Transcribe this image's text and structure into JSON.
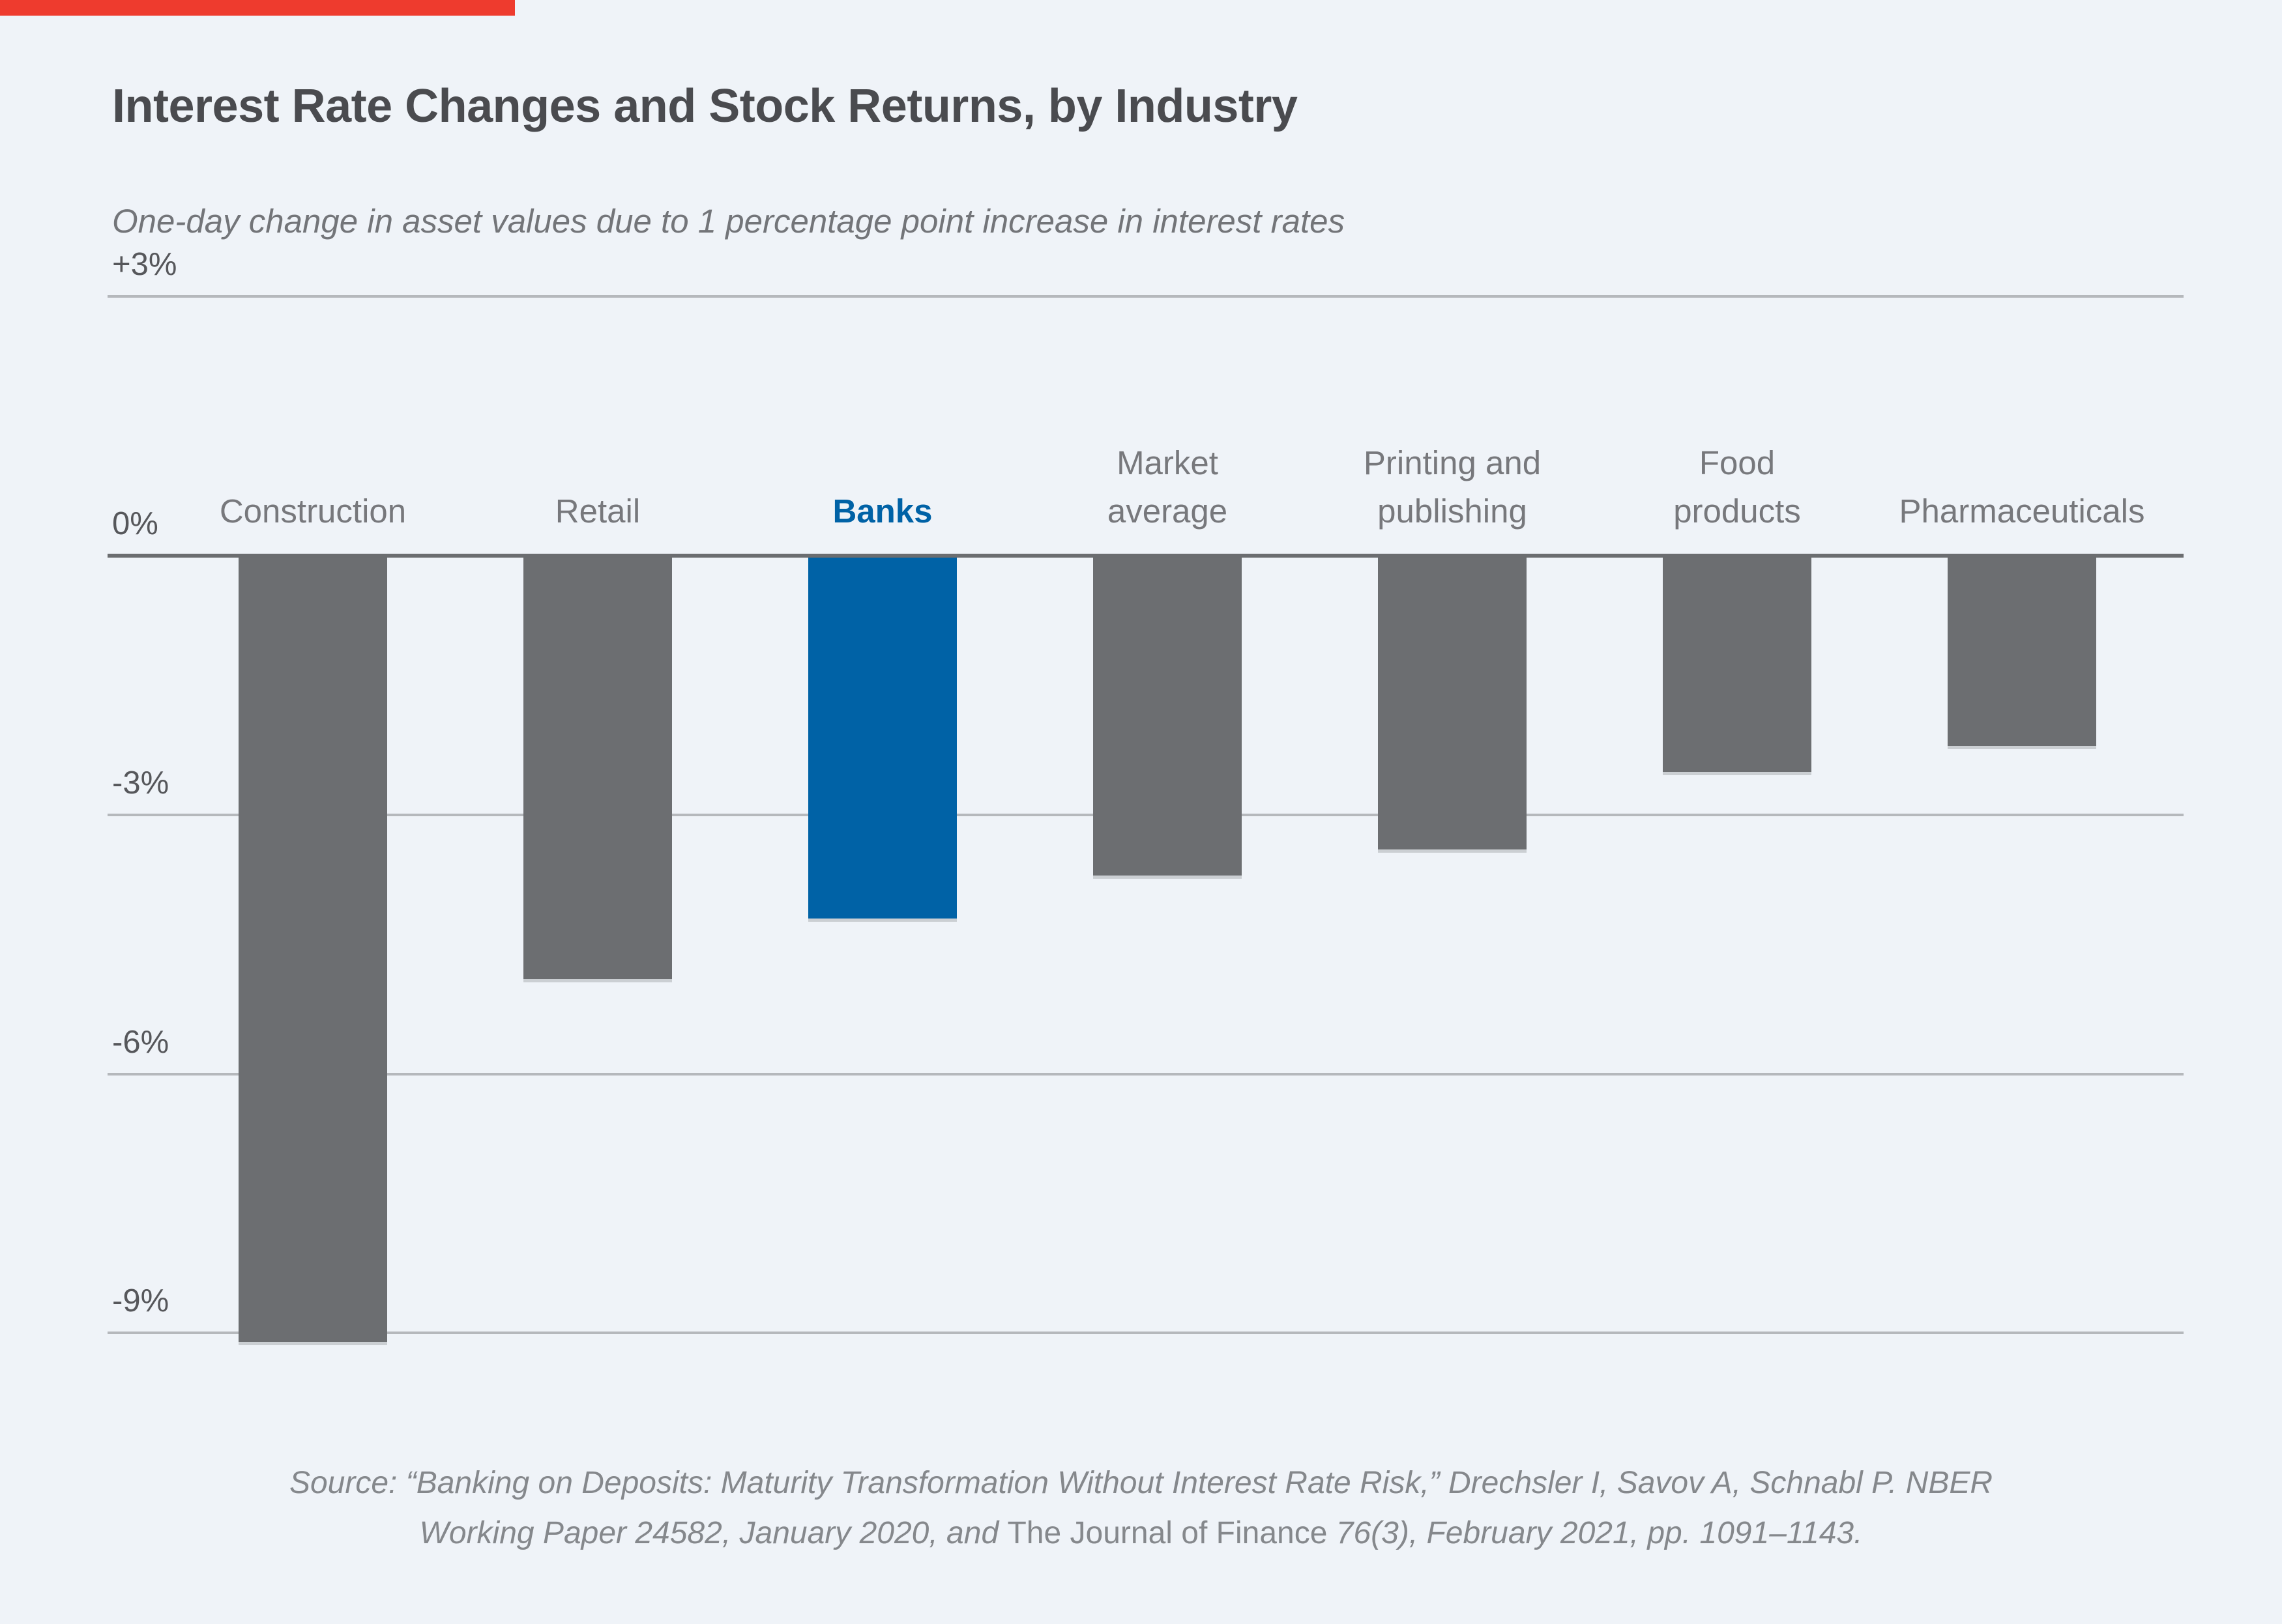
{
  "accent_bar": {
    "color": "#ee3b2e"
  },
  "chart_data": {
    "type": "bar",
    "title": "Interest Rate Changes and Stock Returns, by Industry",
    "subtitle": "One-day change in asset values due to 1 percentage point increase in interest rates",
    "categories": [
      "Construction",
      "Retail",
      "Banks",
      "Market average",
      "Printing and publishing",
      "Food products",
      "Pharmaceuticals"
    ],
    "category_label_lines": [
      [
        "Construction"
      ],
      [
        "Retail"
      ],
      [
        "Banks"
      ],
      [
        "Market",
        "average"
      ],
      [
        "Printing and",
        "publishing"
      ],
      [
        "Food",
        "products"
      ],
      [
        "Pharmaceuticals"
      ]
    ],
    "values": [
      -9.1,
      -4.9,
      -4.2,
      -3.7,
      -3.4,
      -2.5,
      -2.2
    ],
    "unit": "%",
    "highlight_index": 2,
    "xlabel": "",
    "ylabel": "",
    "ylim": [
      3,
      -9.6
    ],
    "grid": "on",
    "legend": "none",
    "y_ticks": [
      {
        "v": 3,
        "label": "+3%"
      },
      {
        "v": 0,
        "label": "0%"
      },
      {
        "v": -3,
        "label": "-3%"
      },
      {
        "v": -6,
        "label": "-6%"
      },
      {
        "v": -9,
        "label": "-9%"
      }
    ],
    "colors": {
      "bar": "#6c6e71",
      "highlight": "#0062a6",
      "category_label": "#77787c",
      "highlight_label": "#0062a6",
      "gridline": "#b5b8bc",
      "zero_line": "#6b6d70",
      "background": "#eff3f8"
    }
  },
  "source": {
    "line1": "Source: “Banking on Deposits: Maturity Transformation Without Interest Rate Risk,” Drechsler I, Savov A, Schnabl P. NBER",
    "line2_italic_before": "Working Paper 24582, January 2020, and ",
    "line2_roman": "The Journal of Finance",
    "line2_italic_after": " 76(3), February 2021, pp. 1091–1143."
  }
}
